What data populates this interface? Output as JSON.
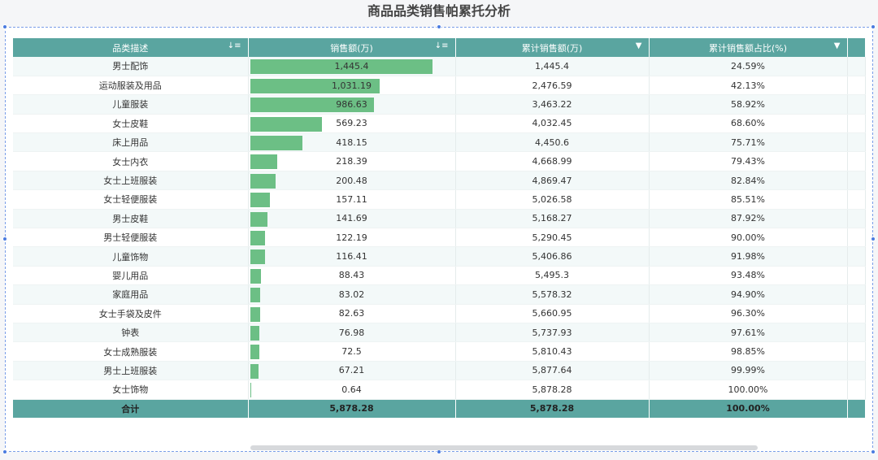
{
  "title": "商品品类销售帕累托分析",
  "table": {
    "headers": {
      "category": "品类描述",
      "sales": "销售额(万)",
      "cum_sales": "累计销售额(万)",
      "cum_pct": "累计销售额占比(%)"
    },
    "max_sales": 1445.4,
    "rows": [
      {
        "category": "男士配饰",
        "sales": "1,445.4",
        "sales_value": 1445.4,
        "cum_sales": "1,445.4",
        "cum_pct": "24.59%"
      },
      {
        "category": "运动服装及用品",
        "sales": "1,031.19",
        "sales_value": 1031.19,
        "cum_sales": "2,476.59",
        "cum_pct": "42.13%"
      },
      {
        "category": "儿童服装",
        "sales": "986.63",
        "sales_value": 986.63,
        "cum_sales": "3,463.22",
        "cum_pct": "58.92%"
      },
      {
        "category": "女士皮鞋",
        "sales": "569.23",
        "sales_value": 569.23,
        "cum_sales": "4,032.45",
        "cum_pct": "68.60%"
      },
      {
        "category": "床上用品",
        "sales": "418.15",
        "sales_value": 418.15,
        "cum_sales": "4,450.6",
        "cum_pct": "75.71%"
      },
      {
        "category": "女士内衣",
        "sales": "218.39",
        "sales_value": 218.39,
        "cum_sales": "4,668.99",
        "cum_pct": "79.43%"
      },
      {
        "category": "女士上班服装",
        "sales": "200.48",
        "sales_value": 200.48,
        "cum_sales": "4,869.47",
        "cum_pct": "82.84%"
      },
      {
        "category": "女士轻便服装",
        "sales": "157.11",
        "sales_value": 157.11,
        "cum_sales": "5,026.58",
        "cum_pct": "85.51%"
      },
      {
        "category": "男士皮鞋",
        "sales": "141.69",
        "sales_value": 141.69,
        "cum_sales": "5,168.27",
        "cum_pct": "87.92%"
      },
      {
        "category": "男士轻便服装",
        "sales": "122.19",
        "sales_value": 122.19,
        "cum_sales": "5,290.45",
        "cum_pct": "90.00%"
      },
      {
        "category": "儿童饰物",
        "sales": "116.41",
        "sales_value": 116.41,
        "cum_sales": "5,406.86",
        "cum_pct": "91.98%"
      },
      {
        "category": "婴儿用品",
        "sales": "88.43",
        "sales_value": 88.43,
        "cum_sales": "5,495.3",
        "cum_pct": "93.48%"
      },
      {
        "category": "家庭用品",
        "sales": "83.02",
        "sales_value": 83.02,
        "cum_sales": "5,578.32",
        "cum_pct": "94.90%"
      },
      {
        "category": "女士手袋及皮件",
        "sales": "82.63",
        "sales_value": 82.63,
        "cum_sales": "5,660.95",
        "cum_pct": "96.30%"
      },
      {
        "category": "钟表",
        "sales": "76.98",
        "sales_value": 76.98,
        "cum_sales": "5,737.93",
        "cum_pct": "97.61%"
      },
      {
        "category": "女士成熟服装",
        "sales": "72.5",
        "sales_value": 72.5,
        "cum_sales": "5,810.43",
        "cum_pct": "98.85%"
      },
      {
        "category": "男士上班服装",
        "sales": "67.21",
        "sales_value": 67.21,
        "cum_sales": "5,877.64",
        "cum_pct": "99.99%"
      },
      {
        "category": "女士饰物",
        "sales": "0.64",
        "sales_value": 0.64,
        "cum_sales": "5,878.28",
        "cum_pct": "100.00%"
      }
    ],
    "total": {
      "label": "合计",
      "sales": "5,878.28",
      "cum_sales": "5,878.28",
      "cum_pct": "100.00%"
    }
  },
  "icons": {
    "sort": "sort-desc-icon",
    "dropdown": "triangle-down-icon"
  },
  "colors": {
    "header": "#5aa5a0",
    "bar": "#6cbf85",
    "selection": "#4a7be0"
  }
}
